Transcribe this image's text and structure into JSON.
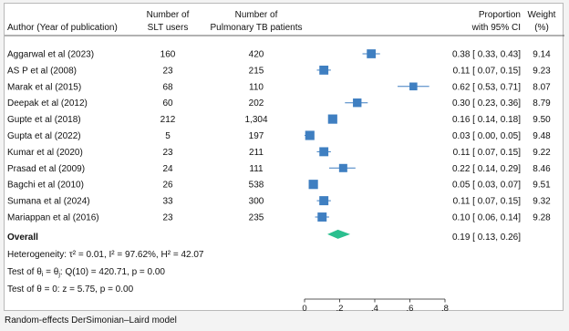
{
  "chart_data": {
    "type": "forest",
    "headers": {
      "study": "Author (Year of publication)",
      "slt_line1": "Number of",
      "slt_line2": "SLT users",
      "ptb_line1": "Number of",
      "ptb_line2": "Pulmonary TB patients",
      "prop_line1": "Proportion",
      "prop_line2": "with 95% CI",
      "weight_line1": "Weight",
      "weight_line2": "(%)"
    },
    "studies": [
      {
        "label": "Aggarwal et al (2023)",
        "slt": "160",
        "ptb": "420",
        "estimate": 0.38,
        "lower": 0.33,
        "upper": 0.43,
        "ci_text": "0.38 [ 0.33, 0.43]",
        "weight": 9.14,
        "weight_text": "9.14"
      },
      {
        "label": "AS P et al (2008)",
        "slt": "23",
        "ptb": "215",
        "estimate": 0.11,
        "lower": 0.07,
        "upper": 0.15,
        "ci_text": "0.11 [ 0.07, 0.15]",
        "weight": 9.23,
        "weight_text": "9.23"
      },
      {
        "label": "Marak et al (2015)",
        "slt": "68",
        "ptb": "110",
        "estimate": 0.62,
        "lower": 0.53,
        "upper": 0.71,
        "ci_text": "0.62 [ 0.53, 0.71]",
        "weight": 8.07,
        "weight_text": "8.07"
      },
      {
        "label": "Deepak et al (2012)",
        "slt": "60",
        "ptb": "202",
        "estimate": 0.3,
        "lower": 0.23,
        "upper": 0.36,
        "ci_text": "0.30 [ 0.23, 0.36]",
        "weight": 8.79,
        "weight_text": "8.79"
      },
      {
        "label": "Gupte et al (2018)",
        "slt": "212",
        "ptb": "1,304",
        "estimate": 0.16,
        "lower": 0.14,
        "upper": 0.18,
        "ci_text": "0.16 [ 0.14, 0.18]",
        "weight": 9.5,
        "weight_text": "9.50"
      },
      {
        "label": "Gupta et al (2022)",
        "slt": "5",
        "ptb": "197",
        "estimate": 0.03,
        "lower": 0.0,
        "upper": 0.05,
        "ci_text": "0.03 [ 0.00, 0.05]",
        "weight": 9.48,
        "weight_text": "9.48"
      },
      {
        "label": "Kumar et al (2020)",
        "slt": "23",
        "ptb": "211",
        "estimate": 0.11,
        "lower": 0.07,
        "upper": 0.15,
        "ci_text": "0.11 [ 0.07, 0.15]",
        "weight": 9.22,
        "weight_text": "9.22"
      },
      {
        "label": "Prasad et al (2009)",
        "slt": "24",
        "ptb": "111",
        "estimate": 0.22,
        "lower": 0.14,
        "upper": 0.29,
        "ci_text": "0.22 [ 0.14, 0.29]",
        "weight": 8.46,
        "weight_text": "8.46"
      },
      {
        "label": "Bagchi et al (2010)",
        "slt": "26",
        "ptb": "538",
        "estimate": 0.05,
        "lower": 0.03,
        "upper": 0.07,
        "ci_text": "0.05 [ 0.03, 0.07]",
        "weight": 9.51,
        "weight_text": "9.51"
      },
      {
        "label": "Sumana et al (2024)",
        "slt": "33",
        "ptb": "300",
        "estimate": 0.11,
        "lower": 0.07,
        "upper": 0.15,
        "ci_text": "0.11 [ 0.07, 0.15]",
        "weight": 9.32,
        "weight_text": "9.32"
      },
      {
        "label": "Mariappan et al (2016)",
        "slt": "23",
        "ptb": "235",
        "estimate": 0.1,
        "lower": 0.06,
        "upper": 0.14,
        "ci_text": "0.10 [ 0.06, 0.14]",
        "weight": 9.28,
        "weight_text": "9.28"
      }
    ],
    "overall": {
      "label": "Overall",
      "estimate": 0.19,
      "lower": 0.13,
      "upper": 0.26,
      "ci_text": "0.19 [ 0.13, 0.26]"
    },
    "stats": {
      "heterogeneity": "Heterogeneity: τ² = 0.01, I² = 97.62%, H² = 42.07",
      "test_equal_1": "Test of θ",
      "test_equal_sub1": "i",
      "test_equal_2": " = θ",
      "test_equal_sub2": "j",
      "test_equal_3": ": Q(10) = 420.71, p = 0.00",
      "test_zero": "Test of θ = 0: z = 5.75, p = 0.00"
    },
    "xaxis": {
      "ticks": [
        0,
        0.2,
        0.4,
        0.6,
        0.8
      ],
      "tick_labels": [
        "0",
        ".2",
        ".4",
        ".6",
        ".8"
      ],
      "range": [
        0,
        0.8
      ]
    },
    "colors": {
      "marker": "#3f7fc1",
      "diamond": "#2bbf8f",
      "ci_line": "#3f7fc1"
    }
  },
  "footnote": "Random-effects DerSimonian–Laird model"
}
